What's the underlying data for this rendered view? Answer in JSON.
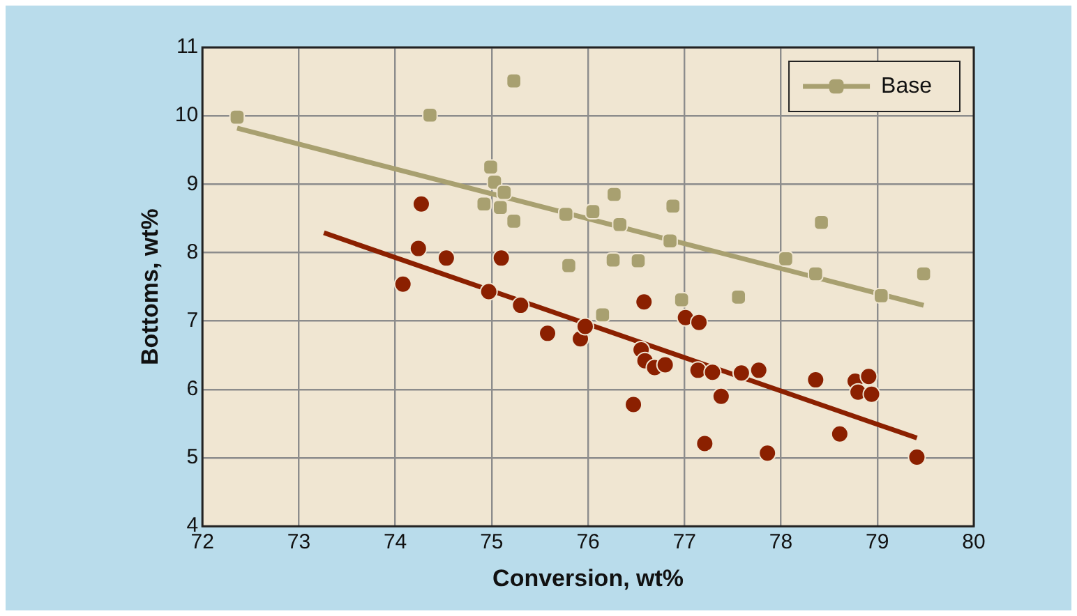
{
  "chart_data": {
    "type": "scatter",
    "xlabel": "Conversion, wt%",
    "ylabel": "Bottoms, wt%",
    "xlim": [
      72,
      80
    ],
    "xticks": [
      72,
      73,
      74,
      75,
      76,
      77,
      78,
      79,
      80
    ],
    "ylim": [
      4,
      11
    ],
    "yticks": [
      4,
      5,
      6,
      7,
      8,
      9,
      10,
      11
    ],
    "grid": true,
    "legend": "top right",
    "series": [
      {
        "color": "#8b2000",
        "marker": "circle",
        "x": [
          74.08,
          74.27,
          74.24,
          74.53,
          74.97,
          75.1,
          75.3,
          75.58,
          75.6,
          75.92,
          75.97,
          76.58,
          77.01,
          77.15,
          76.55,
          76.59,
          76.69,
          76.8,
          76.47,
          77.14,
          77.29,
          77.38,
          77.21,
          77.59,
          77.77,
          77.86,
          78.36,
          78.61,
          78.77,
          78.8,
          78.91,
          78.94,
          79.41
        ],
        "values": [
          7.54,
          8.71,
          8.06,
          7.92,
          7.43,
          7.92,
          7.23,
          6.82,
          null,
          6.74,
          6.92,
          7.28,
          7.05,
          6.98,
          6.58,
          6.42,
          6.32,
          6.36,
          5.78,
          6.28,
          6.25,
          5.9,
          5.21,
          6.24,
          6.28,
          5.07,
          6.14,
          5.35,
          6.12,
          5.96,
          6.19,
          5.93,
          5.01
        ]
      },
      {
        "type": "line",
        "color": "#8b2000",
        "marker": "none",
        "x": [
          73.26,
          79.41
        ],
        "values": [
          8.29,
          5.29
        ]
      },
      {
        "name": "Base",
        "color": "#a8a070",
        "marker": "square",
        "x": [
          72.36,
          74.36,
          75.23,
          74.99,
          75.03,
          75.13,
          74.92,
          75.09,
          75.23,
          75.77,
          75.8,
          76.05,
          76.15,
          76.27,
          76.33,
          76.26,
          76.52,
          76.88,
          76.85,
          76.97,
          77.56,
          78.05,
          78.36,
          78.42,
          79.04,
          79.48
        ],
        "values": [
          9.98,
          10.01,
          10.51,
          9.25,
          9.03,
          8.88,
          8.71,
          8.66,
          8.46,
          8.56,
          7.81,
          8.6,
          7.09,
          8.85,
          8.41,
          7.89,
          7.88,
          8.68,
          8.17,
          7.31,
          7.35,
          7.91,
          7.69,
          8.44,
          7.37,
          7.69
        ]
      },
      {
        "type": "line",
        "color": "#a8a070",
        "marker": "none",
        "x": [
          72.36,
          79.48
        ],
        "values": [
          9.82,
          7.23
        ]
      }
    ]
  }
}
